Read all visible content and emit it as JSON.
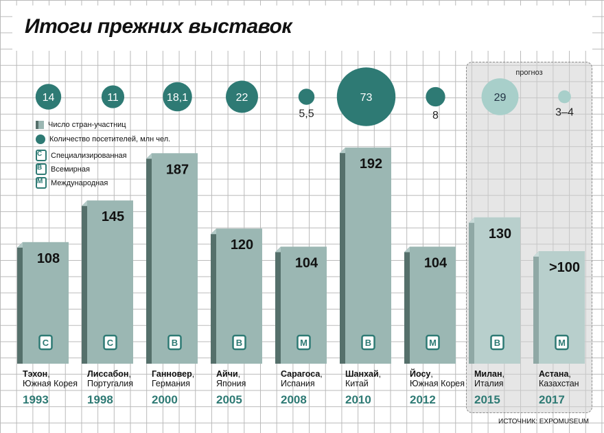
{
  "title": "Итоги прежних выставок",
  "forecast_label": "прогноз",
  "legend": {
    "countries": "Число стран-участниц",
    "visitors": "Количество посетителей, млн чел.",
    "type_c": "Специализированная",
    "type_b": "Всемирная",
    "type_m": "Международная",
    "badge_c": "С",
    "badge_b": "В",
    "badge_m": "М"
  },
  "source": "ИСТОЧНИК: EXPOMUSEUM",
  "colors": {
    "bar": "#9bb7b3",
    "bar_side": "#55706b",
    "bar_forecast": "#b8cfcc",
    "circle": "#2e7a74",
    "circle_forecast": "#a8cfca",
    "accent": "#2e7a74"
  },
  "chart_data": {
    "type": "bar",
    "ylim": [
      0,
      200
    ],
    "categories": [
      "1993",
      "1998",
      "2000",
      "2005",
      "2008",
      "2010",
      "2012",
      "2015",
      "2017"
    ],
    "series": [
      {
        "name": "Число стран-участниц",
        "values": [
          108,
          145,
          187,
          120,
          104,
          192,
          104,
          130,
          100
        ],
        "labels": [
          "108",
          "145",
          "187",
          "120",
          "104",
          "192",
          "104",
          "130",
          ">100"
        ]
      },
      {
        "name": "Количество посетителей, млн чел.",
        "values": [
          14,
          11,
          18.1,
          22,
          5.5,
          73,
          8,
          29,
          3.5
        ],
        "labels": [
          "14",
          "11",
          "18,1",
          "22",
          "5,5",
          "73",
          "8",
          "29",
          "3–4"
        ]
      }
    ],
    "types": [
      "С",
      "С",
      "В",
      "В",
      "М",
      "В",
      "М",
      "В",
      "М"
    ],
    "forecast": [
      false,
      false,
      false,
      false,
      false,
      false,
      false,
      true,
      true
    ],
    "cities": [
      "Тэхон",
      "Лиссабон",
      "Ганновер",
      "Айчи",
      "Сарагоса",
      "Шанхай",
      "Йосу",
      "Милан",
      "Астана"
    ],
    "countries": [
      "Южная Корея",
      "Португалия",
      "Германия",
      "Япония",
      "Испания",
      "Китай",
      "Южная Корея",
      "Италия",
      "Казахстан"
    ]
  }
}
